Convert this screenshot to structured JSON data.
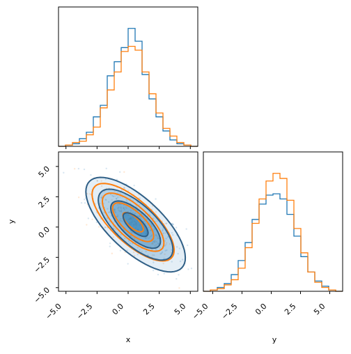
{
  "colors": {
    "series_1": "#1f77b4",
    "series_2": "#ff7f0e"
  },
  "chart_data": [
    {
      "type": "histogram",
      "panel": "x-marginal",
      "xlim": [
        -5.6,
        5.6
      ],
      "xticks": [
        -5.0,
        -2.5,
        0.0,
        2.5,
        5.0
      ],
      "bins": [
        -5.6,
        -5.04,
        -4.48,
        -3.92,
        -3.36,
        -2.8,
        -2.24,
        -1.68,
        -1.12,
        -0.56,
        0.0,
        0.56,
        1.12,
        1.68,
        2.24,
        2.8,
        3.36,
        3.92,
        4.48,
        5.04,
        5.6
      ],
      "series": [
        {
          "color": "#1f77b4",
          "values": [
            0.0,
            0.01,
            0.02,
            0.06,
            0.11,
            0.23,
            0.32,
            0.55,
            0.66,
            0.77,
            0.92,
            0.82,
            0.56,
            0.37,
            0.23,
            0.12,
            0.05,
            0.02,
            0.01,
            0.0
          ]
        },
        {
          "color": "#ff7f0e",
          "values": [
            0.0,
            0.01,
            0.03,
            0.04,
            0.09,
            0.15,
            0.3,
            0.44,
            0.58,
            0.74,
            0.78,
            0.75,
            0.58,
            0.41,
            0.26,
            0.14,
            0.08,
            0.03,
            0.01,
            0.0
          ]
        }
      ]
    },
    {
      "type": "scatter-contour",
      "panel": "joint",
      "xlabel": "x",
      "ylabel": "y",
      "xlim": [
        -5.6,
        5.6
      ],
      "ylim": [
        -5.3,
        6.2
      ],
      "xticks": [
        -5.0,
        -2.5,
        0.0,
        2.5,
        5.0
      ],
      "yticks": [
        -5.0,
        -2.5,
        0.0,
        2.5,
        5.0
      ],
      "tick_labels": [
        "−5.0",
        "−2.5",
        "0.0",
        "2.5",
        "5.0"
      ],
      "distributions": [
        {
          "color": "#1f77b4",
          "mean": [
            0.6,
            0.2
          ],
          "std": [
            2.0,
            1.95
          ],
          "corr": -0.7,
          "contour_sigmas": [
            0.5,
            1.0,
            1.5,
            2.0
          ]
        },
        {
          "color": "#ff7f0e",
          "mean": [
            0.4,
            0.4
          ],
          "std": [
            1.65,
            1.6
          ],
          "corr": -0.72,
          "contour_sigmas": [
            0.5,
            1.0,
            1.5,
            2.0
          ]
        }
      ]
    },
    {
      "type": "histogram",
      "panel": "y-marginal",
      "xlabel": "y",
      "xlim": [
        -5.8,
        6.1
      ],
      "xticks": [
        -5.0,
        -2.5,
        0.0,
        2.5,
        5.0
      ],
      "bins": [
        -5.8,
        -5.205,
        -4.61,
        -4.015,
        -3.42,
        -2.825,
        -2.23,
        -1.635,
        -1.04,
        -0.445,
        0.15,
        0.745,
        1.34,
        1.935,
        2.53,
        3.125,
        3.72,
        4.315,
        4.91,
        5.505,
        6.1
      ],
      "series": [
        {
          "color": "#1f77b4",
          "values": [
            0.0,
            0.01,
            0.03,
            0.06,
            0.13,
            0.24,
            0.38,
            0.56,
            0.68,
            0.75,
            0.76,
            0.72,
            0.6,
            0.43,
            0.27,
            0.15,
            0.08,
            0.04,
            0.01,
            0.0
          ]
        },
        {
          "color": "#ff7f0e",
          "values": [
            0.0,
            0.01,
            0.02,
            0.05,
            0.09,
            0.18,
            0.34,
            0.53,
            0.72,
            0.86,
            0.92,
            0.88,
            0.71,
            0.49,
            0.3,
            0.15,
            0.07,
            0.03,
            0.01,
            0.0
          ]
        }
      ]
    }
  ]
}
